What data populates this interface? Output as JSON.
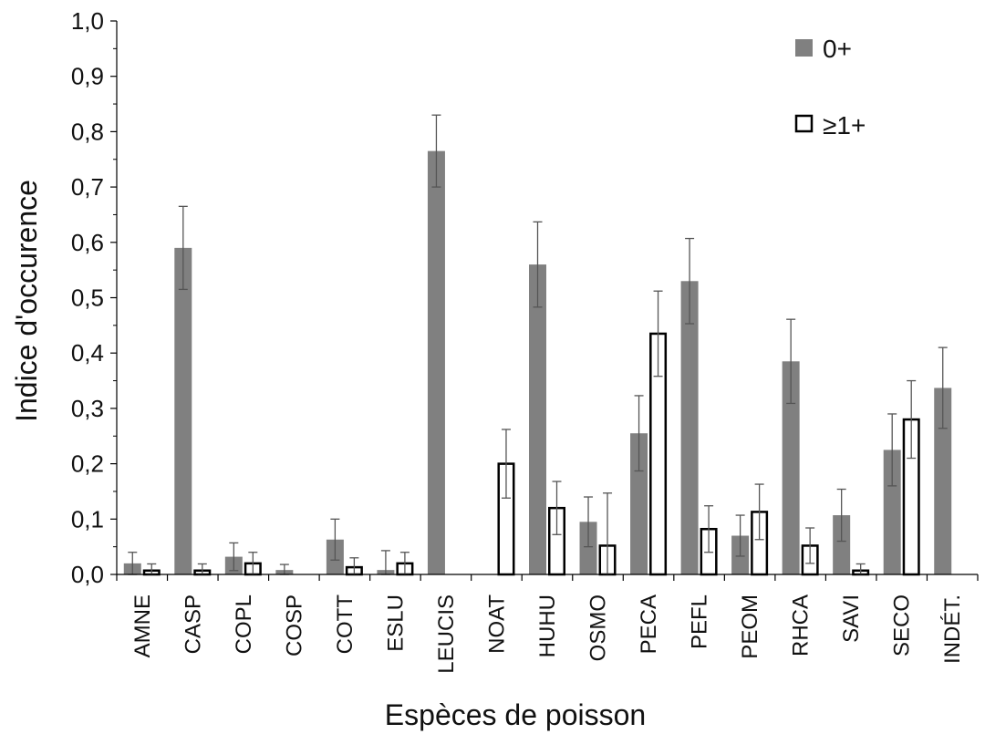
{
  "chart_data": {
    "type": "bar",
    "xlabel": "Espèces de poisson",
    "ylabel": "Indice d'occurence",
    "ylim": [
      0,
      1.0
    ],
    "yticks": [
      "0,0",
      "0,1",
      "0,2",
      "0,3",
      "0,4",
      "0,5",
      "0,6",
      "0,7",
      "0,8",
      "0,9",
      "1,0"
    ],
    "categories": [
      "AMNE",
      "CASP",
      "COPL",
      "COSP",
      "COTT",
      "ESLU",
      "LEUCIS",
      "NOAT",
      "HUHU",
      "OSMO",
      "PECA",
      "PEFL",
      "PEOM",
      "RHCA",
      "SAVI",
      "SECO",
      "INDÉT."
    ],
    "series": [
      {
        "name": "0+",
        "color": "#808080",
        "values": [
          0.02,
          0.59,
          0.032,
          0.008,
          0.063,
          0.008,
          0.765,
          null,
          0.56,
          0.095,
          0.255,
          0.53,
          0.07,
          0.385,
          0.107,
          0.225,
          0.337
        ],
        "errors": [
          0.02,
          0.075,
          0.025,
          0.01,
          0.037,
          0.035,
          0.065,
          null,
          0.077,
          0.045,
          0.068,
          0.077,
          0.037,
          0.076,
          0.047,
          0.065,
          0.073
        ]
      },
      {
        "name": "≥1+",
        "color": "#ffffff",
        "values": [
          0.007,
          0.007,
          0.02,
          null,
          0.013,
          0.02,
          null,
          0.2,
          0.12,
          0.052,
          0.435,
          0.082,
          0.113,
          0.052,
          0.007,
          0.28,
          null
        ],
        "errors": [
          0.012,
          0.012,
          0.02,
          null,
          0.017,
          0.02,
          null,
          0.062,
          0.048,
          0.095,
          0.077,
          0.042,
          0.05,
          0.032,
          0.012,
          0.07,
          null
        ]
      }
    ],
    "legend_position": "top-right",
    "grid": false
  }
}
